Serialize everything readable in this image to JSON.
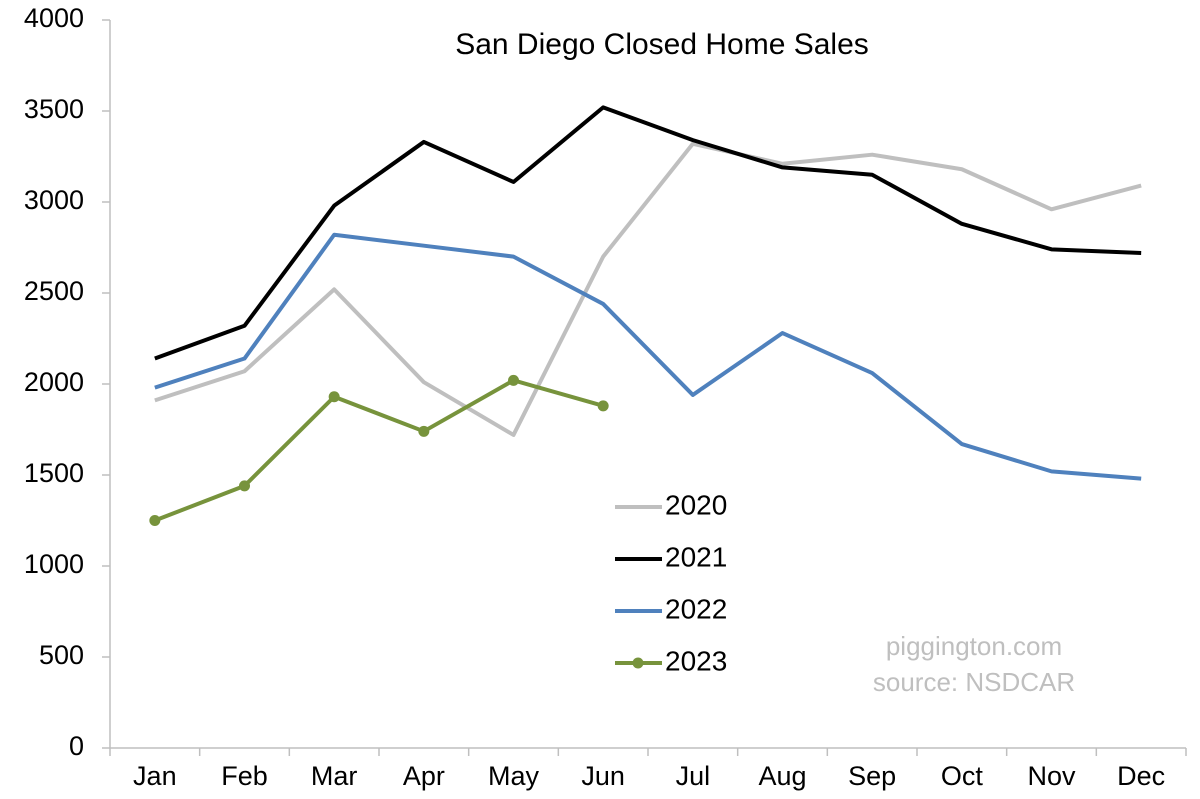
{
  "chart_data": {
    "type": "line",
    "title": "San Diego Closed Home Sales",
    "annotations": [
      "piggington.com",
      "source: NSDCAR"
    ],
    "categories": [
      "Jan",
      "Feb",
      "Mar",
      "Apr",
      "May",
      "Jun",
      "Jul",
      "Aug",
      "Sep",
      "Oct",
      "Nov",
      "Dec"
    ],
    "series": [
      {
        "name": "2020",
        "color": "#bfbfbf",
        "markers": false,
        "values": [
          1910,
          2070,
          2520,
          2010,
          1720,
          2700,
          3320,
          3210,
          3260,
          3180,
          2960,
          3090
        ]
      },
      {
        "name": "2021",
        "color": "#000000",
        "markers": false,
        "values": [
          2140,
          2320,
          2980,
          3330,
          3110,
          3520,
          3340,
          3190,
          3150,
          2880,
          2740,
          2720
        ]
      },
      {
        "name": "2022",
        "color": "#4f81bd",
        "markers": false,
        "values": [
          1980,
          2140,
          2820,
          2760,
          2700,
          2440,
          1940,
          2280,
          2060,
          1670,
          1520,
          1480
        ]
      },
      {
        "name": "2023",
        "color": "#77933c",
        "markers": true,
        "values": [
          1250,
          1440,
          1930,
          1740,
          2020,
          1880,
          null,
          null,
          null,
          null,
          null,
          null
        ]
      }
    ],
    "ylim": [
      0,
      4000
    ],
    "yticks": [
      0,
      500,
      1000,
      1500,
      2000,
      2500,
      3000,
      3500,
      4000
    ],
    "grid": false
  }
}
